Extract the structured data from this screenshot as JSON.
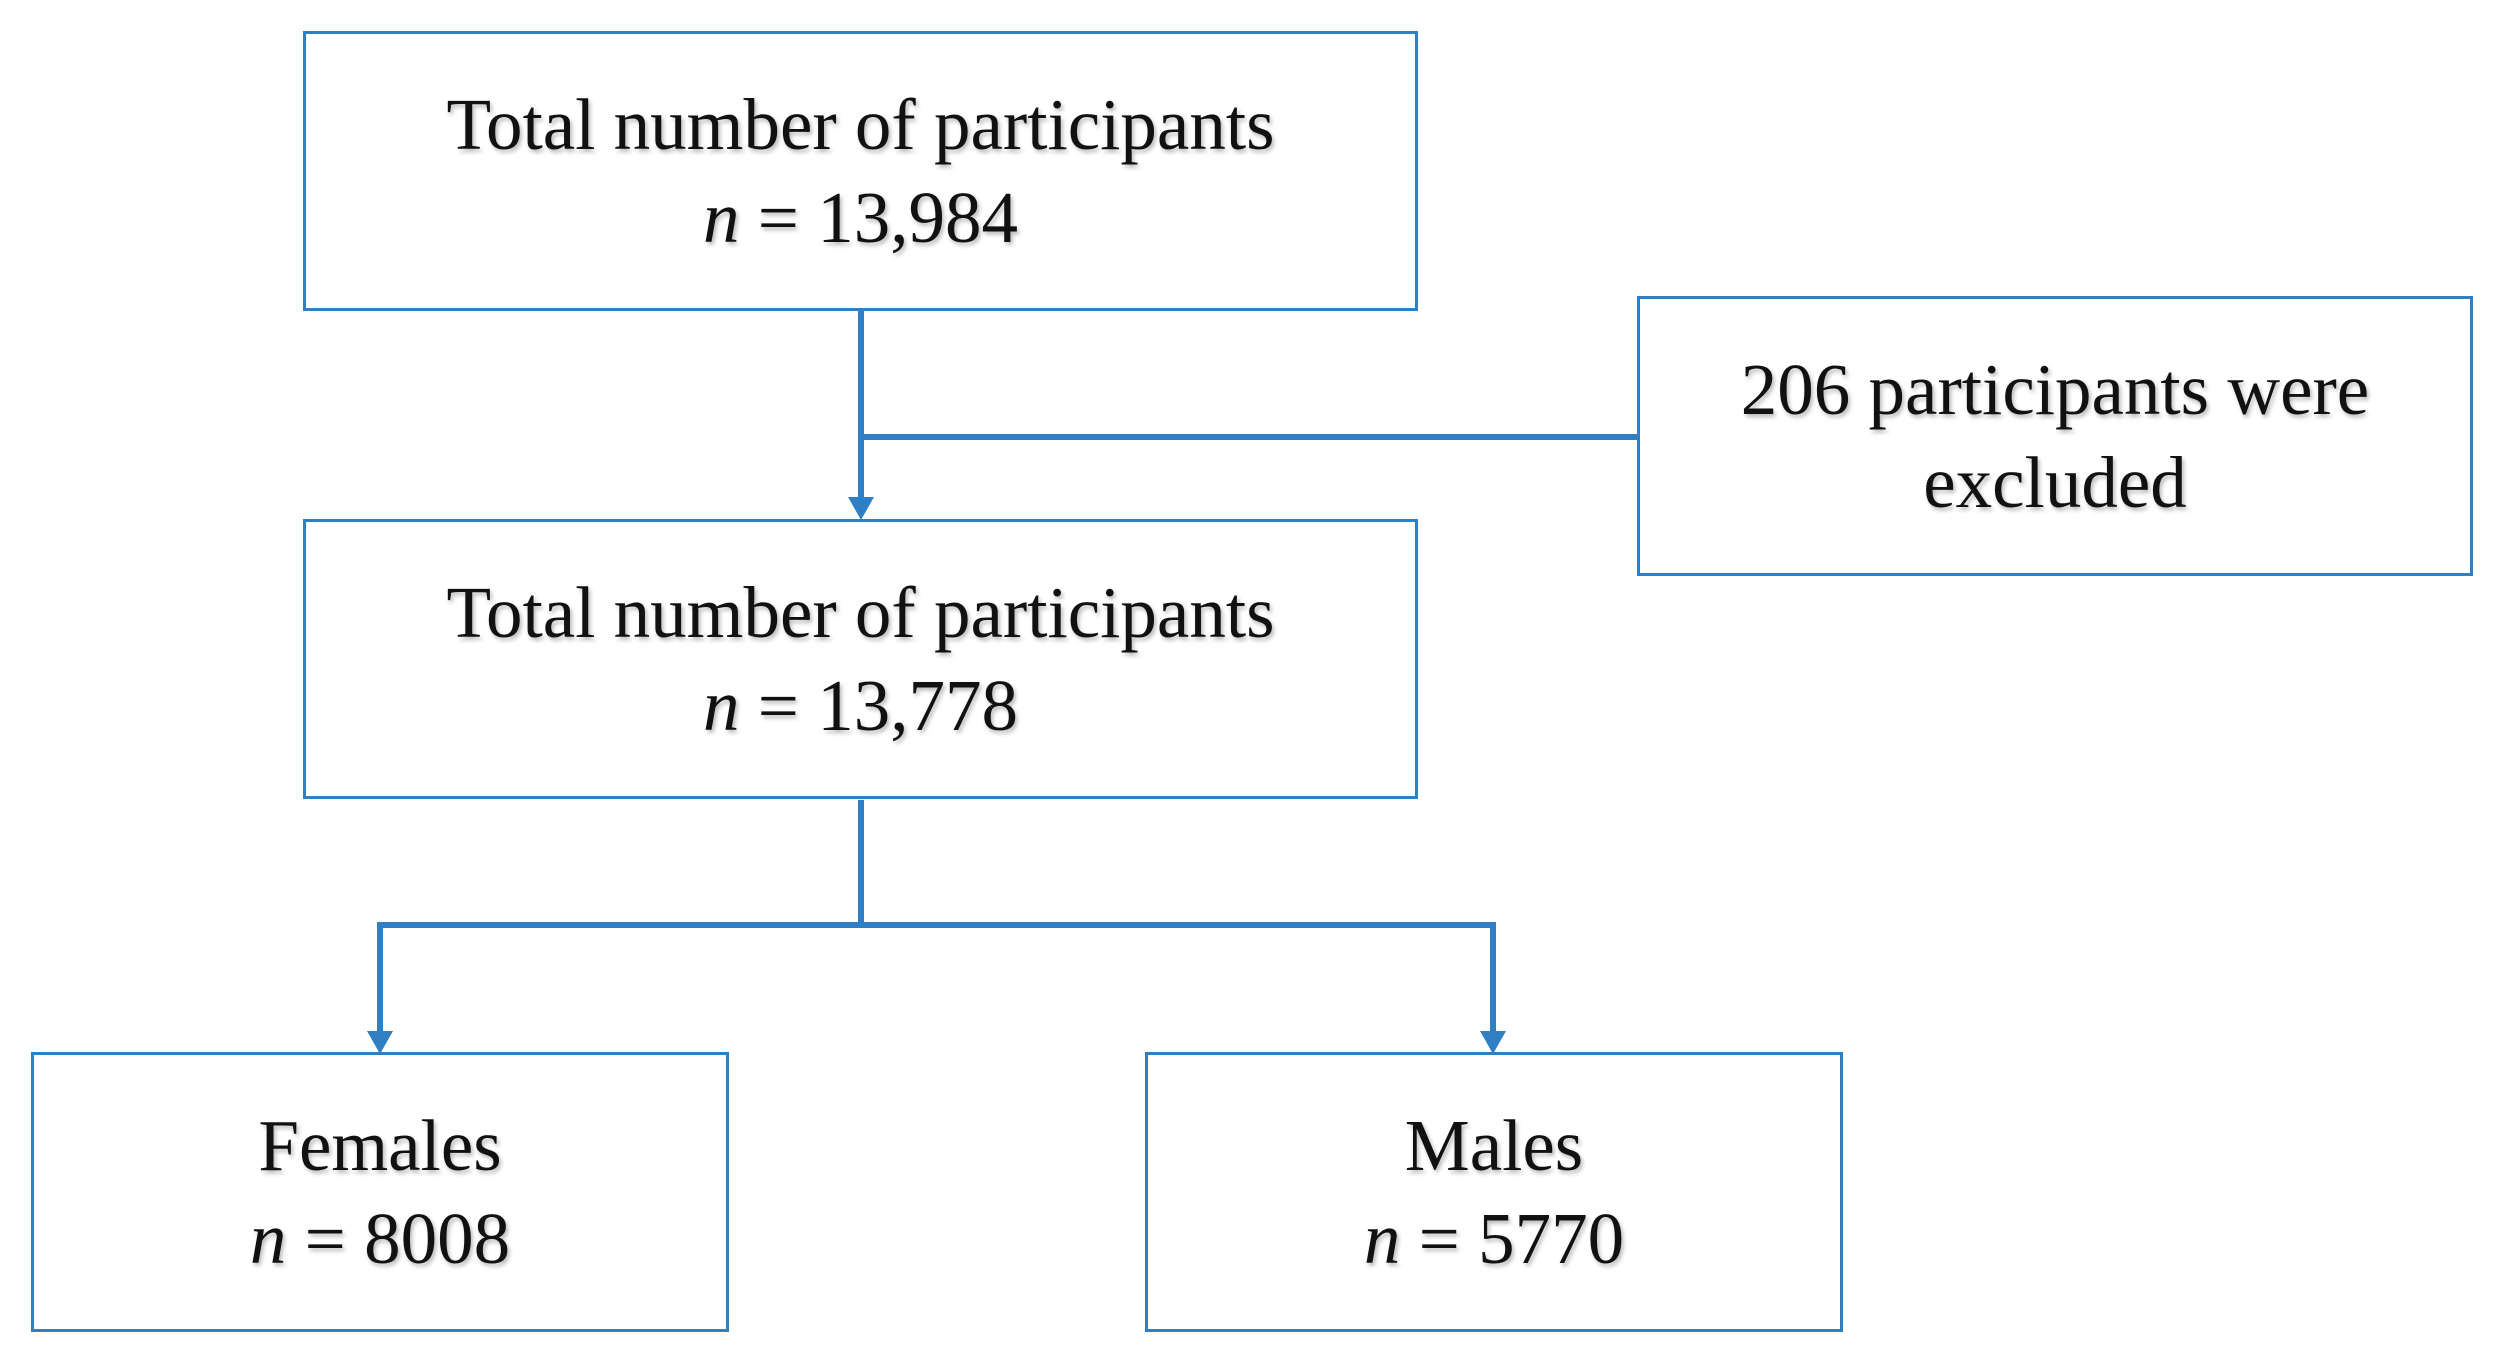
{
  "nodes": {
    "total_initial": {
      "label": "Total number of participants",
      "count_var": "n",
      "count_value": "= 13,984"
    },
    "excluded": {
      "line1": "206 participants were",
      "line2": "excluded"
    },
    "total_final": {
      "label": "Total number of participants",
      "count_var": "n",
      "count_value": "= 13,778"
    },
    "females": {
      "label": "Females",
      "count_var": "n",
      "count_value": "= 8008"
    },
    "males": {
      "label": "Males",
      "count_var": "n",
      "count_value": "= 5770"
    }
  },
  "colors": {
    "border": "#2e7fc4",
    "connector": "#2e7fc4",
    "text": "#111111",
    "background": "#ffffff"
  }
}
